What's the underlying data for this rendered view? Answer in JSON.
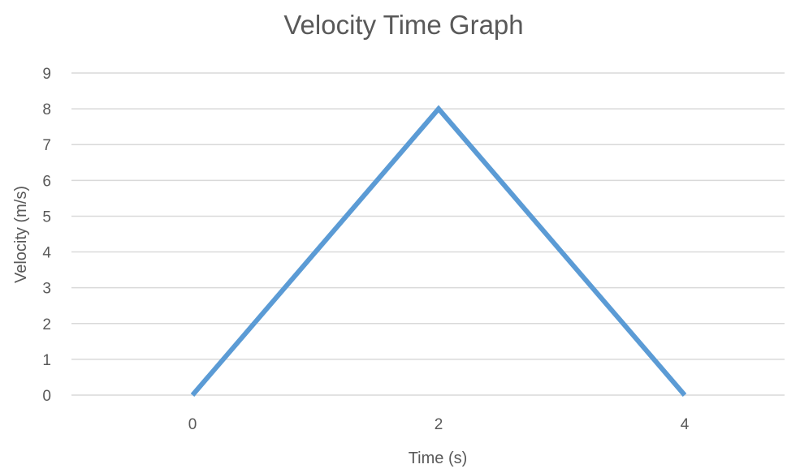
{
  "chart_data": {
    "type": "line",
    "title": "Velocity Time Graph",
    "xlabel": "Time (s)",
    "ylabel": "Velocity (m/s)",
    "x_ticks": [
      "0",
      "2",
      "4"
    ],
    "y_ticks": [
      "0",
      "1",
      "2",
      "3",
      "4",
      "5",
      "6",
      "7",
      "8",
      "9"
    ],
    "ylim": [
      0,
      9
    ],
    "grid": "horizontal",
    "legend": "none",
    "series": [
      {
        "x": [
          0,
          2,
          4
        ],
        "values": [
          0,
          8,
          0
        ],
        "color": "#5b9bd5"
      }
    ]
  }
}
